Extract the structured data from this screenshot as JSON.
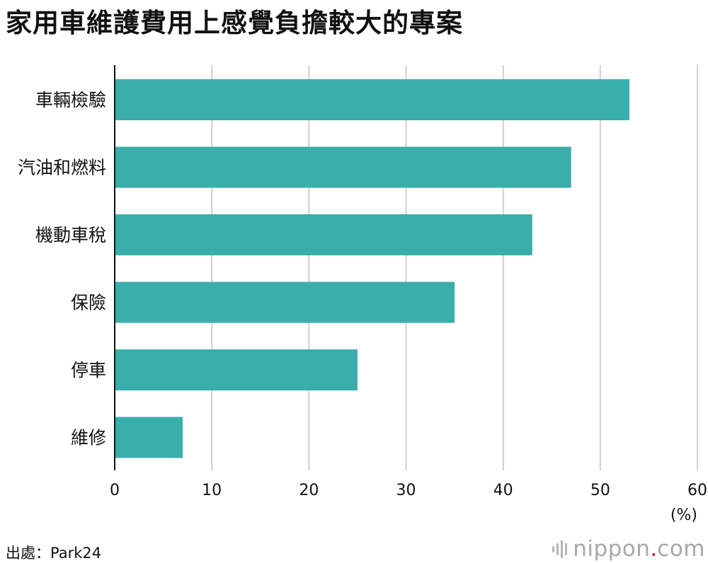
{
  "title": "家用車維護費用上感覺負擔較大的專案",
  "source": "出處：Park24",
  "brand": {
    "name": "nippon",
    "dot": ".",
    "suffix": "com"
  },
  "colors": {
    "bar": "#3aaeab",
    "grid": "#cfcfcf",
    "axis": "#111111",
    "text": "#111111",
    "brand_dot": "#d71920"
  },
  "chart_data": {
    "type": "bar",
    "orientation": "horizontal",
    "categories": [
      "車輛檢驗",
      "汽油和燃料",
      "機動車稅",
      "保險",
      "停車",
      "維修"
    ],
    "values": [
      53,
      47,
      43,
      35,
      25,
      7
    ],
    "title": "家用車維護費用上感覺負擔較大的專案",
    "xlabel": "(%)",
    "ylabel": "",
    "xlim": [
      0,
      60
    ],
    "xticks": [
      "0",
      "10",
      "20",
      "30",
      "40",
      "50",
      "60"
    ],
    "grid": true
  }
}
